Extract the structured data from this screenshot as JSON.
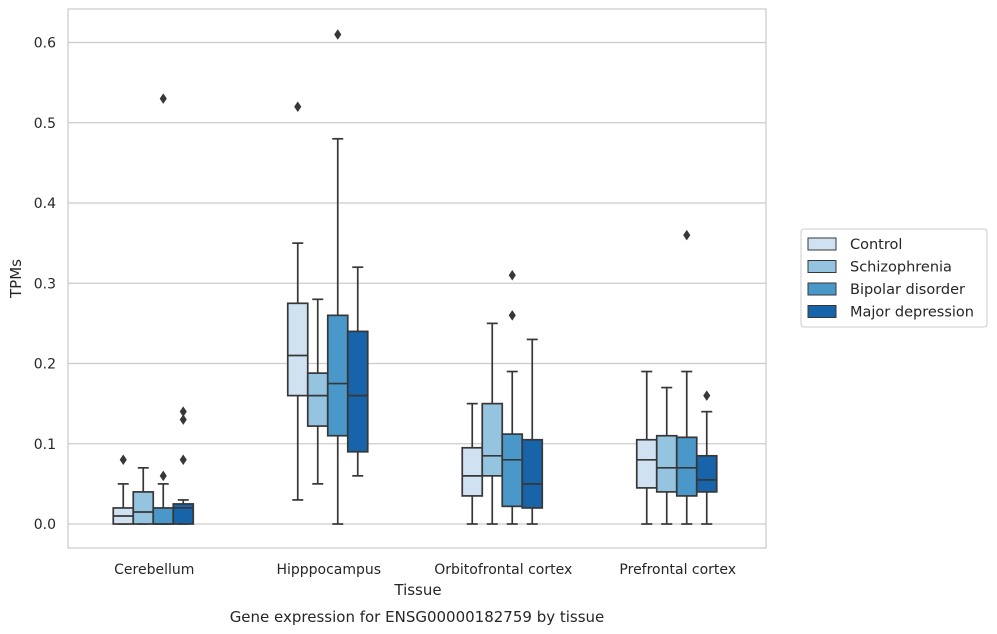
{
  "caption": "Gene expression for ENSG00000182759 by tissue",
  "chart_data": {
    "type": "box",
    "title": "",
    "xlabel": "Tissue",
    "ylabel": "TPMs",
    "ylim": [
      -0.03,
      0.64
    ],
    "yticks": [
      0.0,
      0.1,
      0.2,
      0.3,
      0.4,
      0.5,
      0.6
    ],
    "ytick_labels": [
      "0.0",
      "0.1",
      "0.2",
      "0.3",
      "0.4",
      "0.5",
      "0.6"
    ],
    "grid": "horizontal",
    "legend_position": "right",
    "categories": [
      "Cerebellum",
      "Hipppocampus",
      "Orbitofrontal cortex",
      "Prefrontal cortex"
    ],
    "series": [
      {
        "name": "Control",
        "color": "#d0e1f2",
        "boxes": [
          {
            "whislo": 0.0,
            "q1": 0.0,
            "med": 0.01,
            "q3": 0.02,
            "whishi": 0.05,
            "fliers": [
              0.08
            ]
          },
          {
            "whislo": 0.03,
            "q1": 0.16,
            "med": 0.21,
            "q3": 0.275,
            "whishi": 0.35,
            "fliers": [
              0.52
            ]
          },
          {
            "whislo": 0.0,
            "q1": 0.035,
            "med": 0.06,
            "q3": 0.095,
            "whishi": 0.15,
            "fliers": []
          },
          {
            "whislo": 0.0,
            "q1": 0.045,
            "med": 0.08,
            "q3": 0.105,
            "whishi": 0.19,
            "fliers": []
          }
        ]
      },
      {
        "name": "Schizophrenia",
        "color": "#94c4df",
        "boxes": [
          {
            "whislo": 0.0,
            "q1": 0.0,
            "med": 0.015,
            "q3": 0.04,
            "whishi": 0.07,
            "fliers": []
          },
          {
            "whislo": 0.05,
            "q1": 0.122,
            "med": 0.16,
            "q3": 0.188,
            "whishi": 0.28,
            "fliers": []
          },
          {
            "whislo": 0.0,
            "q1": 0.06,
            "med": 0.085,
            "q3": 0.15,
            "whishi": 0.25,
            "fliers": []
          },
          {
            "whislo": 0.0,
            "q1": 0.04,
            "med": 0.07,
            "q3": 0.11,
            "whishi": 0.17,
            "fliers": []
          }
        ]
      },
      {
        "name": "Bipolar disorder",
        "color": "#4a98c9",
        "boxes": [
          {
            "whislo": 0.0,
            "q1": 0.0,
            "med": 0.0,
            "q3": 0.02,
            "whishi": 0.05,
            "fliers": [
              0.06,
              0.53
            ]
          },
          {
            "whislo": 0.0,
            "q1": 0.11,
            "med": 0.175,
            "q3": 0.26,
            "whishi": 0.48,
            "fliers": [
              0.61
            ]
          },
          {
            "whislo": 0.0,
            "q1": 0.022,
            "med": 0.08,
            "q3": 0.112,
            "whishi": 0.19,
            "fliers": [
              0.26,
              0.31
            ]
          },
          {
            "whislo": 0.0,
            "q1": 0.035,
            "med": 0.07,
            "q3": 0.108,
            "whishi": 0.19,
            "fliers": [
              0.36
            ]
          }
        ]
      },
      {
        "name": "Major depression",
        "color": "#1764ab",
        "boxes": [
          {
            "whislo": 0.0,
            "q1": 0.0,
            "med": 0.02,
            "q3": 0.025,
            "whishi": 0.03,
            "fliers": [
              0.08,
              0.13,
              0.14
            ]
          },
          {
            "whislo": 0.06,
            "q1": 0.09,
            "med": 0.16,
            "q3": 0.24,
            "whishi": 0.32,
            "fliers": []
          },
          {
            "whislo": 0.0,
            "q1": 0.02,
            "med": 0.05,
            "q3": 0.105,
            "whishi": 0.23,
            "fliers": []
          },
          {
            "whislo": 0.0,
            "q1": 0.04,
            "med": 0.055,
            "q3": 0.085,
            "whishi": 0.14,
            "fliers": [
              0.16
            ]
          }
        ]
      }
    ]
  }
}
